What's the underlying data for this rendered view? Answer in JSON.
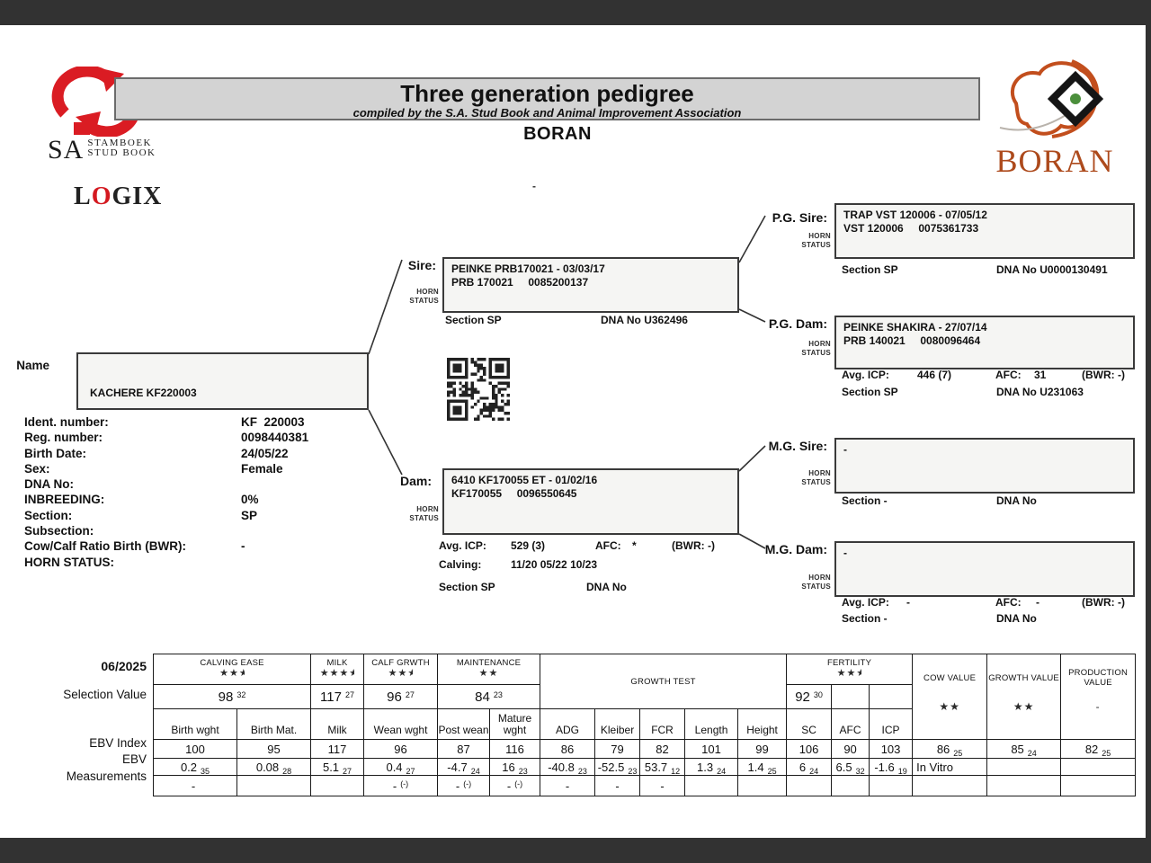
{
  "header": {
    "title": "Three generation pedigree",
    "subtitle": "compiled by the S.A. Stud Book and Animal Improvement Association",
    "breed": "BORAN",
    "sa_logo": {
      "sa": "SA",
      "line1": "STAMBOEK",
      "line2": "STUD BOOK"
    },
    "logix": {
      "l": "L",
      "o": "O",
      "gix": "GIX"
    },
    "boran_logo_text": "BORAN",
    "stray_dash": "-"
  },
  "animal": {
    "name_label": "Name",
    "name": "KACHERE KF220003",
    "fields": [
      {
        "label": "Ident. number:",
        "value": "KF  220003"
      },
      {
        "label": "Reg. number:",
        "value": "0098440381"
      },
      {
        "label": "Birth Date:",
        "value": "24/05/22"
      },
      {
        "label": "Sex:",
        "value": "Female"
      },
      {
        "label": "DNA No:",
        "value": ""
      },
      {
        "label": "INBREEDING:",
        "value": "0%"
      },
      {
        "label": "Section:",
        "value": "SP"
      },
      {
        "label": "Subsection:",
        "value": ""
      },
      {
        "label": "Cow/Calf Ratio Birth (BWR):",
        "value": "-"
      },
      {
        "label": "HORN STATUS:",
        "value": ""
      }
    ]
  },
  "pedigree": {
    "horn": {
      "l1": "HORN",
      "l2": "STATUS"
    },
    "sire": {
      "label": "Sire:",
      "line1": "PEINKE PRB170021 - 03/03/17",
      "line2": "PRB 170021     0085200137",
      "section": "Section SP",
      "dna": "DNA No U362496"
    },
    "dam": {
      "label": "Dam:",
      "line1": "6410 KF170055 ET - 01/02/16",
      "line2": "KF170055     0096550645",
      "avg_icp_label": "Avg. ICP:",
      "avg_icp": "529 (3)",
      "afc_label": "AFC:",
      "afc": "*",
      "bwr": "(BWR: -)",
      "calving_label": "Calving:",
      "calving": "11/20 05/22 10/23",
      "section": "Section SP",
      "dna": "DNA No"
    },
    "pg_sire": {
      "label": "P.G. Sire:",
      "line1": "TRAP VST 120006 - 07/05/12",
      "line2": "VST 120006     0075361733",
      "section": "Section SP",
      "dna": "DNA No U0000130491"
    },
    "pg_dam": {
      "label": "P.G. Dam:",
      "line1": "PEINKE SHAKIRA - 27/07/14",
      "line2": "PRB 140021     0080096464",
      "avg_icp_label": "Avg. ICP:",
      "avg_icp": "446 (7)",
      "afc_label": "AFC:",
      "afc": "31",
      "bwr": "(BWR: -)",
      "section": "Section SP",
      "dna": "DNA No U231063"
    },
    "mg_sire": {
      "label": "M.G. Sire:",
      "line1": "-",
      "section": "Section -",
      "dna": "DNA No"
    },
    "mg_dam": {
      "label": "M.G. Dam:",
      "line1": "-",
      "avg_icp_label": "Avg. ICP:",
      "avg_icp": "-",
      "afc_label": "AFC:",
      "afc": "-",
      "bwr": "(BWR: -)",
      "section": "Section -",
      "dna": "DNA No"
    }
  },
  "table": {
    "date": "06/2025",
    "row_labels": {
      "selection": "Selection Value",
      "ebv_index": "EBV Index",
      "ebv": "EBV",
      "measurements": "Measurements"
    },
    "groups": {
      "calving_ease": {
        "label": "CALVING EASE",
        "stars": 2.5,
        "sel": "98",
        "sel_acc": "32"
      },
      "milk": {
        "label": "MILK",
        "stars": 3.5,
        "sel": "117",
        "sel_acc": "27"
      },
      "calf_grwth": {
        "label": "CALF GRWTH",
        "stars": 2.5,
        "sel": "96",
        "sel_acc": "27"
      },
      "maintenance": {
        "label": "MAINTENANCE",
        "stars": 2,
        "sel": "84",
        "sel_acc": "23"
      },
      "growth_test": {
        "label": "GROWTH TEST"
      },
      "fertility": {
        "label": "FERTILITY",
        "stars": 2.5,
        "sel": "92",
        "sel_acc": "30"
      }
    },
    "value_cols": {
      "cow": {
        "label": "COW VALUE",
        "stars": 2,
        "index_v": "86",
        "index_a": "25",
        "ebv": "In Vitro",
        "meas": ""
      },
      "growth": {
        "label": "GROWTH VALUE",
        "stars": 2,
        "index_v": "85",
        "index_a": "24",
        "ebv": "",
        "meas": ""
      },
      "production": {
        "label": "PRODUCTION VALUE",
        "rating": "-",
        "index_v": "82",
        "index_a": "25",
        "ebv": "",
        "meas": ""
      }
    },
    "columns": [
      "Birth wght",
      "Birth Mat.",
      "Milk",
      "Wean wght",
      "Post wean",
      "Mature wght",
      "ADG",
      "Kleiber",
      "FCR",
      "Length",
      "Height",
      "SC",
      "AFC",
      "ICP"
    ],
    "ebv_index": [
      "100",
      "95",
      "117",
      "96",
      "87",
      "116",
      "86",
      "79",
      "82",
      "101",
      "99",
      "106",
      "90",
      "103"
    ],
    "ebv": [
      {
        "v": "0.2",
        "a": "35"
      },
      {
        "v": "0.08",
        "a": "28"
      },
      {
        "v": "5.1",
        "a": "27"
      },
      {
        "v": "0.4",
        "a": "27"
      },
      {
        "v": "-4.7",
        "a": "24"
      },
      {
        "v": "16",
        "a": "23"
      },
      {
        "v": "-40.8",
        "a": "23"
      },
      {
        "v": "-52.5",
        "a": "23"
      },
      {
        "v": "53.7",
        "a": "12"
      },
      {
        "v": "1.3",
        "a": "24"
      },
      {
        "v": "1.4",
        "a": "25"
      },
      {
        "v": "6",
        "a": "24"
      },
      {
        "v": "6.5",
        "a": "32"
      },
      {
        "v": "-1.6",
        "a": "19"
      }
    ],
    "measurements": [
      {
        "v": "-",
        "p": ""
      },
      {
        "v": "",
        "p": ""
      },
      {
        "v": "",
        "p": ""
      },
      {
        "v": "-",
        "p": "(-)"
      },
      {
        "v": "-",
        "p": "(-)"
      },
      {
        "v": "-",
        "p": "(-)"
      },
      {
        "v": "-",
        "p": ""
      },
      {
        "v": "-",
        "p": ""
      },
      {
        "v": "-",
        "p": ""
      },
      {
        "v": "",
        "p": ""
      },
      {
        "v": "",
        "p": ""
      },
      {
        "v": "",
        "p": ""
      },
      {
        "v": "",
        "p": ""
      },
      {
        "v": "",
        "p": ""
      }
    ]
  }
}
